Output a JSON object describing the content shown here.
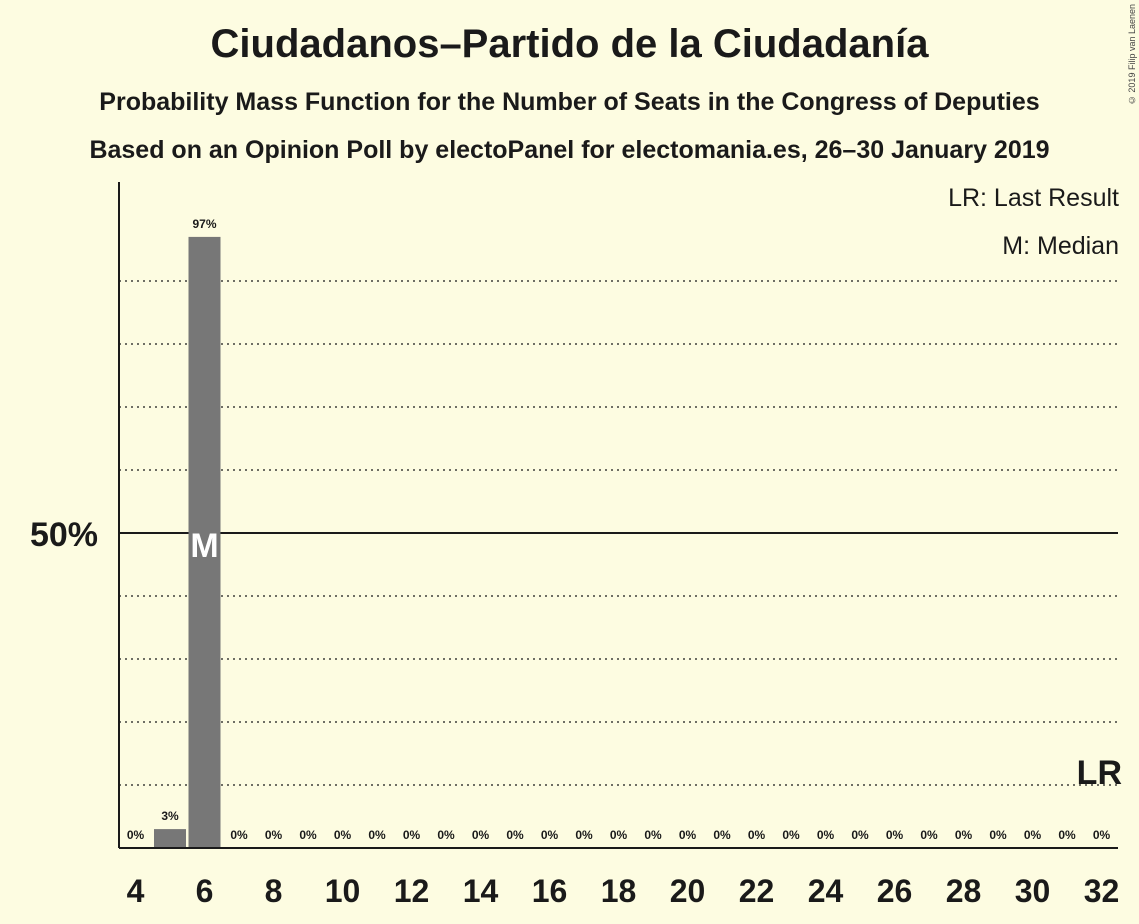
{
  "title": "Ciudadanos–Partido de la Ciudadanía",
  "subtitle1": "Probability Mass Function for the Number of Seats in the Congress of Deputies",
  "subtitle2": "Based on an Opinion Poll by electoPanel for electomania.es, 26–30 January 2019",
  "copyright": "© 2019 Filip van Laenen",
  "legend": {
    "last_result": "LR: Last Result",
    "median": "M: Median"
  },
  "colors": {
    "background": "#fdfce1",
    "bar": "#777777",
    "text": "#1a1a1a"
  },
  "chart_data": {
    "type": "bar",
    "x": [
      4,
      5,
      6,
      7,
      8,
      9,
      10,
      11,
      12,
      13,
      14,
      15,
      16,
      17,
      18,
      19,
      20,
      21,
      22,
      23,
      24,
      25,
      26,
      27,
      28,
      29,
      30,
      31,
      32
    ],
    "values": [
      0,
      3,
      97,
      0,
      0,
      0,
      0,
      0,
      0,
      0,
      0,
      0,
      0,
      0,
      0,
      0,
      0,
      0,
      0,
      0,
      0,
      0,
      0,
      0,
      0,
      0,
      0,
      0,
      0
    ],
    "value_labels": [
      "0%",
      "3%",
      "97%",
      "0%",
      "0%",
      "0%",
      "0%",
      "0%",
      "0%",
      "0%",
      "0%",
      "0%",
      "0%",
      "0%",
      "0%",
      "0%",
      "0%",
      "0%",
      "0%",
      "0%",
      "0%",
      "0%",
      "0%",
      "0%",
      "0%",
      "0%",
      "0%",
      "0%",
      "0%"
    ],
    "x_ticks": [
      "4",
      "6",
      "8",
      "10",
      "12",
      "14",
      "16",
      "18",
      "20",
      "22",
      "24",
      "26",
      "28",
      "30",
      "32"
    ],
    "y_tick_label": "50%",
    "ylim": [
      0,
      105
    ],
    "median_seats": 6,
    "median_marker": "M",
    "last_result_seats": 32,
    "last_result_marker": "LR",
    "grid": "dotted every 10%, solid at 50%"
  }
}
